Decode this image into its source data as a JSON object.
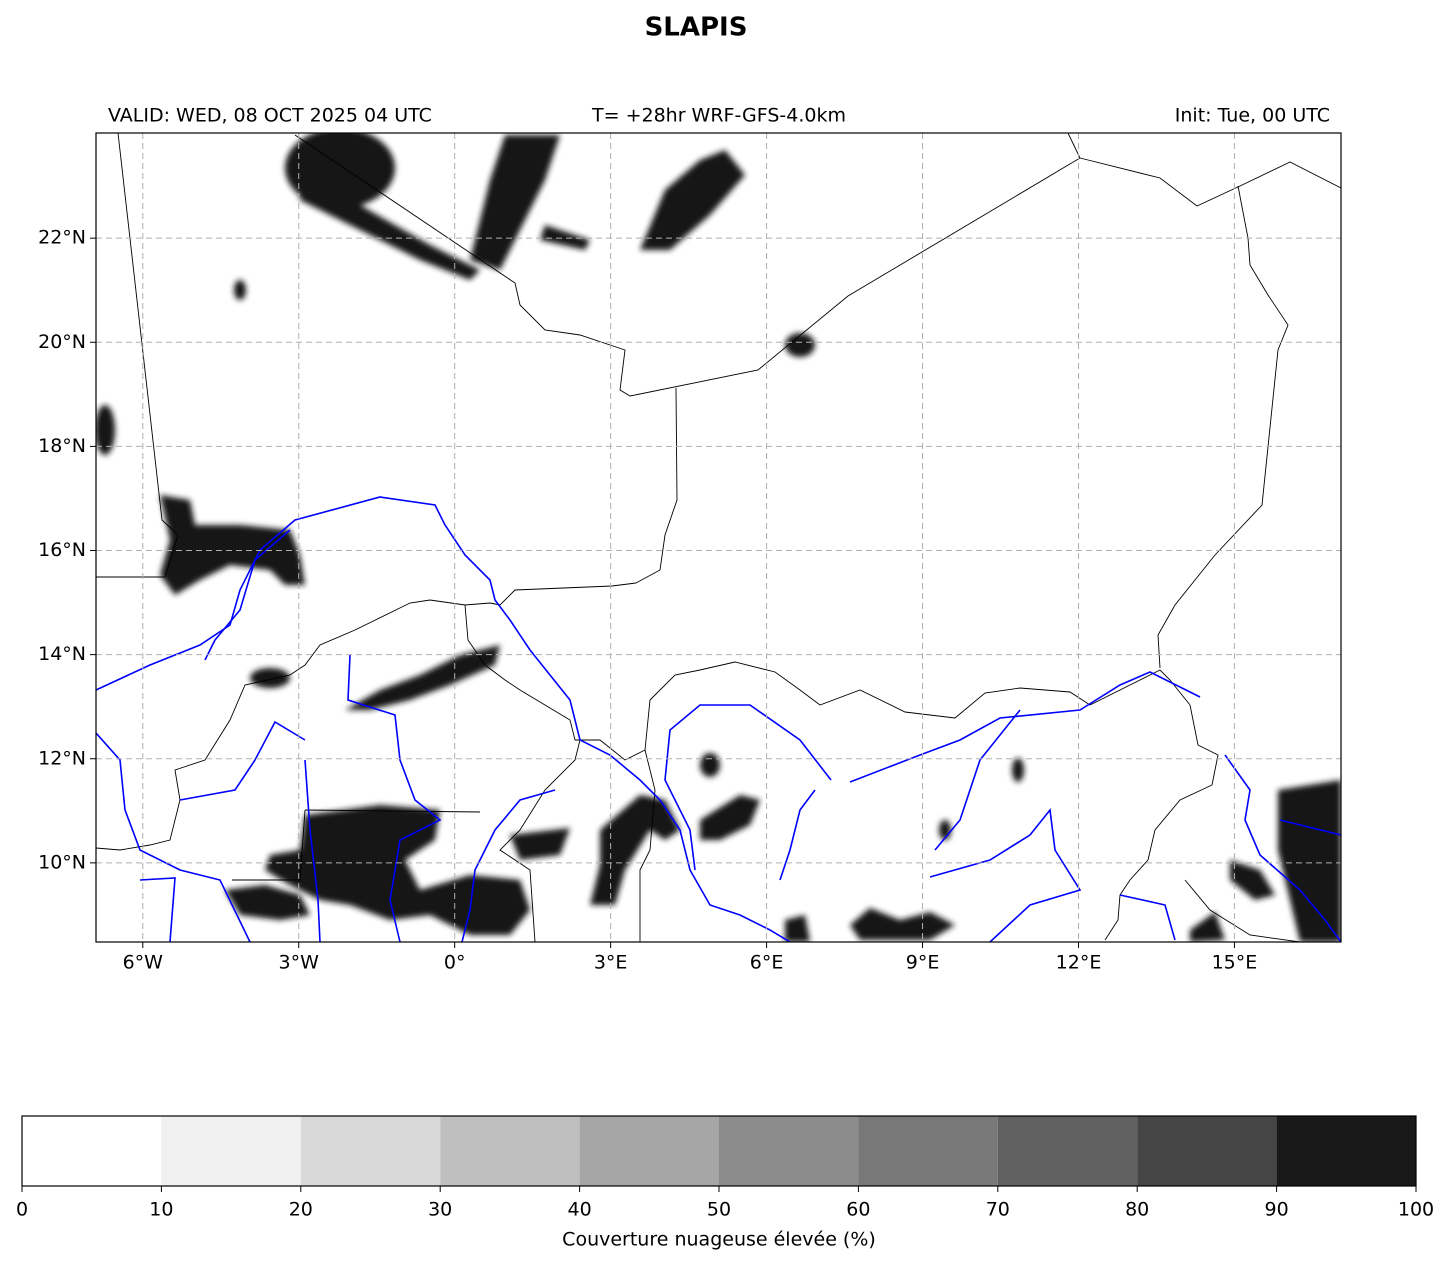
{
  "title": "SLAPIS",
  "valid": "VALID: WED, 08 OCT 2025 04 UTC",
  "run": "T= +28hr WRF-GFS-4.0km",
  "init": "Init: Tue, 00 UTC",
  "map": {
    "lonlim": [
      -6.9,
      17.05
    ],
    "latlim": [
      8.48,
      24.02
    ],
    "grid": true,
    "xticks": [
      {
        "value": -6,
        "label": "6°W"
      },
      {
        "value": -3,
        "label": "3°W"
      },
      {
        "value": 0,
        "label": "0°"
      },
      {
        "value": 3,
        "label": "3°E"
      },
      {
        "value": 6,
        "label": "6°E"
      },
      {
        "value": 9,
        "label": "9°E"
      },
      {
        "value": 12,
        "label": "12°E"
      },
      {
        "value": 15,
        "label": "15°E"
      }
    ],
    "yticks": [
      {
        "value": 10,
        "label": "10°N"
      },
      {
        "value": 12,
        "label": "12°N"
      },
      {
        "value": 14,
        "label": "14°N"
      },
      {
        "value": 16,
        "label": "16°N"
      },
      {
        "value": 18,
        "label": "18°N"
      },
      {
        "value": 20,
        "label": "20°N"
      },
      {
        "value": 22,
        "label": "22°N"
      }
    ]
  },
  "colorbar": {
    "label": "Couverture nuageuse élevée (%)",
    "ticks": [
      0,
      10,
      20,
      30,
      40,
      50,
      60,
      70,
      80,
      90,
      100
    ],
    "colors": [
      "#ffffff",
      "#f0f0f0",
      "#d9d9d9",
      "#bfbfbf",
      "#a6a6a6",
      "#8c8c8c",
      "#787878",
      "#606060",
      "#454545",
      "#181818"
    ]
  }
}
